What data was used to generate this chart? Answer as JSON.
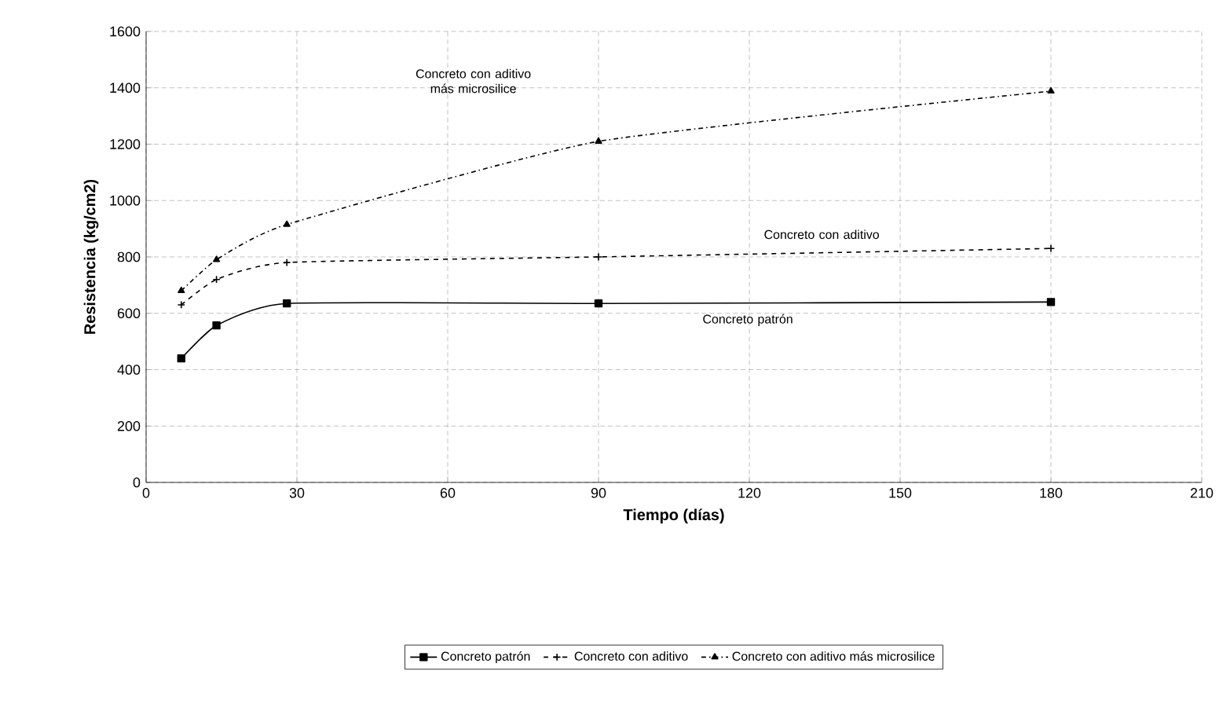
{
  "chart_data": {
    "type": "line",
    "xlabel": "Tiempo (días)",
    "ylabel": "Resistencia (kg/cm2)",
    "xlim": [
      0,
      210
    ],
    "xticks": [
      0,
      30,
      60,
      90,
      120,
      150,
      180,
      210
    ],
    "ylim": [
      0,
      1600
    ],
    "yticks": [
      0,
      200,
      400,
      600,
      800,
      1000,
      1200,
      1400,
      1600
    ],
    "grid": true,
    "legend": "bottom",
    "x": [
      7,
      14,
      28,
      90,
      180
    ],
    "series": [
      {
        "name": "Concreto patrón",
        "color": "#000000",
        "marker": "square",
        "line_style": "solid",
        "values": [
          440,
          557,
          635,
          635,
          640
        ]
      },
      {
        "name": "Concreto con aditivo",
        "color": "#000000",
        "marker": "cross",
        "line_style": "dashed",
        "values": [
          630,
          720,
          780,
          800,
          830
        ]
      },
      {
        "name": "Concreto con aditivo más microsilice",
        "color": "#000000",
        "marker": "triangle",
        "line_style": "dashdot",
        "values": [
          680,
          790,
          915,
          1210,
          1388
        ]
      }
    ],
    "annotations": [
      "Concreto con aditivo más microsilice",
      "Concreto con aditivo",
      "Concreto patrón"
    ]
  }
}
